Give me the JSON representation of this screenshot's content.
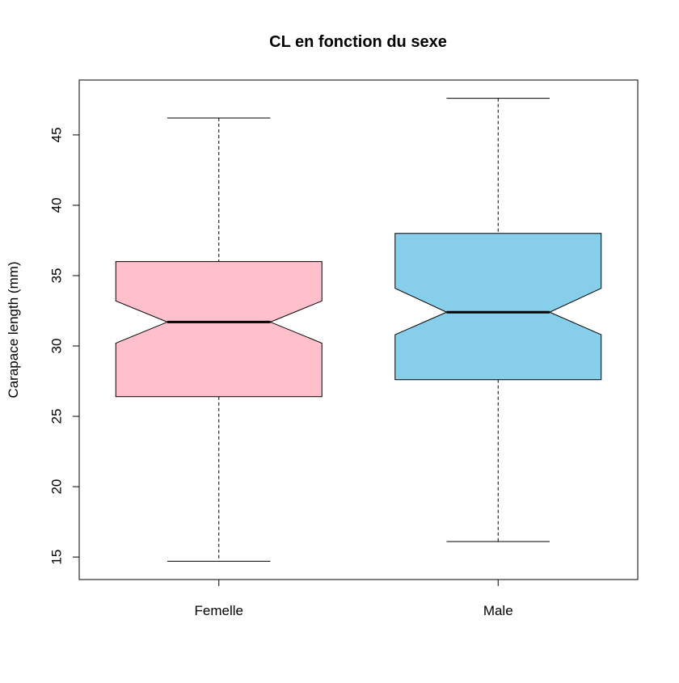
{
  "chart_data": {
    "type": "boxplot",
    "title": "CL en fonction  du sexe",
    "xlabel": "",
    "ylabel": "Carapace length (mm)",
    "ylim": [
      13.4,
      48.9
    ],
    "yticks": [
      15,
      20,
      25,
      30,
      35,
      40,
      45
    ],
    "notched": true,
    "grid": false,
    "categories": [
      "Femelle",
      "Male"
    ],
    "boxes": [
      {
        "category": "Femelle",
        "whisker_low": 14.7,
        "q1": 26.4,
        "median": 31.7,
        "q3": 36.0,
        "whisker_high": 46.2,
        "notch_low": 30.2,
        "notch_high": 33.2,
        "color": "#FFC0CB"
      },
      {
        "category": "Male",
        "whisker_low": 16.1,
        "q1": 27.6,
        "median": 32.4,
        "q3": 38.0,
        "whisker_high": 47.6,
        "notch_low": 30.8,
        "notch_high": 34.1,
        "color": "#87CEEB"
      }
    ]
  }
}
